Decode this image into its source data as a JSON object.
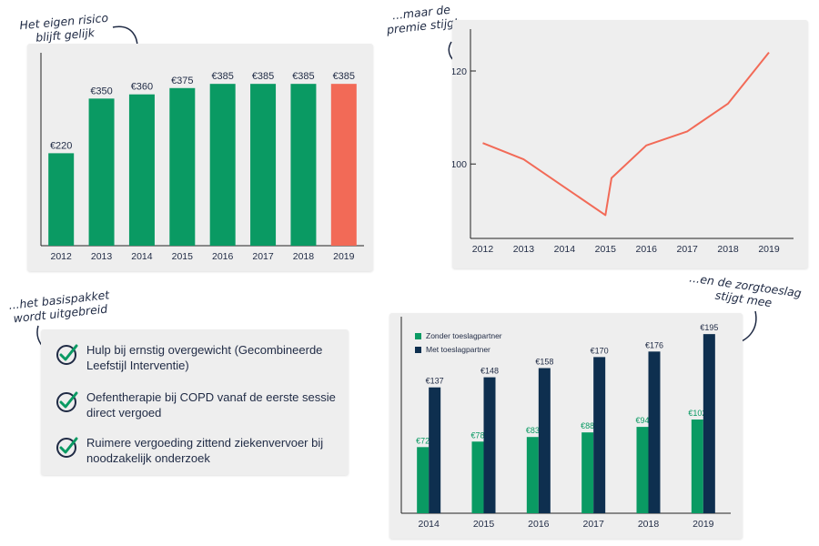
{
  "notes": {
    "risk": [
      "Het eigen risico",
      "blijft gelijk"
    ],
    "premium": [
      "...maar de",
      "premie stijgt"
    ],
    "package": [
      "...het basispakket",
      "wordt uitgebreid"
    ],
    "allowance": [
      "...en de zorgtoeslag",
      "stijgt mee"
    ]
  },
  "benefits": [
    "Hulp bij ernstig overgewicht (Gecombineerde Leefstijl Interventie)",
    "Oefentherapie bij COPD vanaf de eerste sessie direct vergoed",
    "Ruimere vergoeding zittend ziekenvervoer bij noodzakelijk onderzoek"
  ],
  "colors": {
    "green": "#0a9a63",
    "highlight": "#f26a57",
    "navy": "#0e2f4f",
    "line": "#f26a57",
    "text": "#1f2a44"
  },
  "chart_data": [
    {
      "type": "bar",
      "categories": [
        "2012",
        "2013",
        "2014",
        "2015",
        "2016",
        "2017",
        "2018",
        "2019"
      ],
      "values": [
        220,
        350,
        360,
        375,
        385,
        385,
        385,
        385
      ],
      "labels": [
        "€220",
        "€350",
        "€360",
        "€375",
        "€385",
        "€385",
        "€385",
        "€385"
      ],
      "highlight_index": 7,
      "ylim": [
        0,
        420
      ]
    },
    {
      "type": "line",
      "x": [
        2012,
        2013,
        2014,
        2015,
        2015.15,
        2016,
        2017,
        2018,
        2019
      ],
      "y": [
        104.5,
        101,
        95,
        89,
        97,
        104,
        107,
        113,
        124
      ],
      "xticks": [
        "2012",
        "2013",
        "2014",
        "2015",
        "2016",
        "2017",
        "2018",
        "2019"
      ],
      "yticks": [
        100,
        120
      ],
      "xlim": [
        2011.7,
        2019.6
      ],
      "ylim": [
        84,
        129
      ]
    },
    {
      "type": "bar",
      "categories": [
        "2014",
        "2015",
        "2016",
        "2017",
        "2018",
        "2019"
      ],
      "series": [
        {
          "name": "Zonder toeslagpartner",
          "values": [
            72,
            78,
            83,
            88,
            94,
            102
          ],
          "labels": [
            "€72",
            "€78",
            "€83",
            "€88",
            "€94",
            "€102"
          ]
        },
        {
          "name": "Met toeslagpartner",
          "values": [
            137,
            148,
            158,
            170,
            176,
            195
          ],
          "labels": [
            "€137",
            "€148",
            "€158",
            "€170",
            "€176",
            "€195"
          ]
        }
      ],
      "legend_position": "top-left",
      "ylim": [
        0,
        210
      ]
    }
  ]
}
